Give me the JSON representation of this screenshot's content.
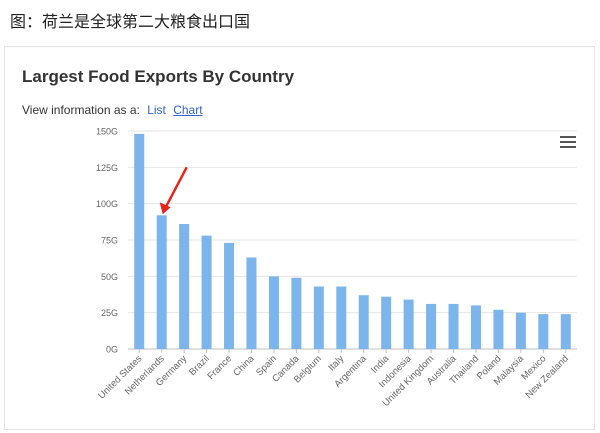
{
  "caption": "图：荷兰是全球第二大粮食出口国",
  "view": {
    "prefix": "View information as a:",
    "list_label": "List",
    "chart_label": "Chart"
  },
  "chart_data": {
    "type": "bar",
    "title": "Largest Food Exports By Country",
    "categories": [
      "United States",
      "Netherlands",
      "Germany",
      "Brazil",
      "France",
      "China",
      "Spain",
      "Canada",
      "Belgium",
      "Italy",
      "Argentina",
      "India",
      "Indonesia",
      "United Kingdom",
      "Australia",
      "Thailand",
      "Poland",
      "Malaysia",
      "Mexico",
      "New Zealand"
    ],
    "values": [
      148,
      92,
      86,
      78,
      73,
      63,
      50,
      49,
      43,
      43,
      37,
      36,
      34,
      31,
      31,
      30,
      27,
      25,
      24,
      24
    ],
    "ylim": [
      0,
      150
    ],
    "yticks": [
      0,
      25,
      50,
      75,
      100,
      125,
      150
    ],
    "ytick_labels": [
      "0G",
      "25G",
      "50G",
      "75G",
      "100G",
      "125G",
      "150G"
    ],
    "xlabel": "",
    "ylabel": "",
    "bar_color": "#7cb5ec",
    "arrow_color": "#e8251d",
    "grid": true
  }
}
